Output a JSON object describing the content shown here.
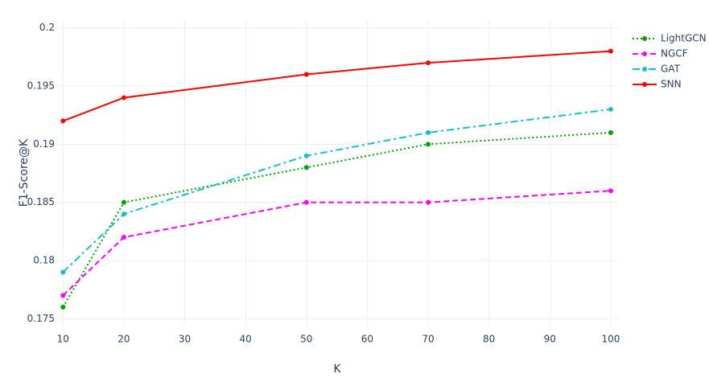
{
  "chart_data": {
    "type": "line",
    "x_label": "K",
    "y_label": "F1-Score@K",
    "x": [
      10,
      20,
      50,
      70,
      100
    ],
    "series": [
      {
        "name": "LightGCN",
        "color": "#00a000",
        "dash": "dot",
        "values": [
          0.176,
          0.185,
          0.188,
          0.19,
          0.191
        ]
      },
      {
        "name": "NGCF",
        "color": "#ff00ff",
        "dash": "dash",
        "values": [
          0.177,
          0.182,
          0.185,
          0.185,
          0.186
        ]
      },
      {
        "name": "GAT",
        "color": "#17becf",
        "dash": "dashdot",
        "values": [
          0.179,
          0.184,
          0.189,
          0.191,
          0.193
        ]
      },
      {
        "name": "SNN",
        "color": "#ff0000",
        "dash": "solid",
        "values": [
          0.192,
          0.194,
          0.196,
          0.197,
          0.198
        ]
      }
    ],
    "xlim": [
      8.9,
      101.2
    ],
    "xticks": [
      10,
      20,
      30,
      40,
      50,
      60,
      70,
      80,
      90,
      100
    ],
    "ylim": [
      0.1744,
      0.2006
    ],
    "yticks": [
      0.175,
      0.18,
      0.185,
      0.19,
      0.195,
      0.2
    ],
    "grid": true,
    "legend": "top-right"
  }
}
